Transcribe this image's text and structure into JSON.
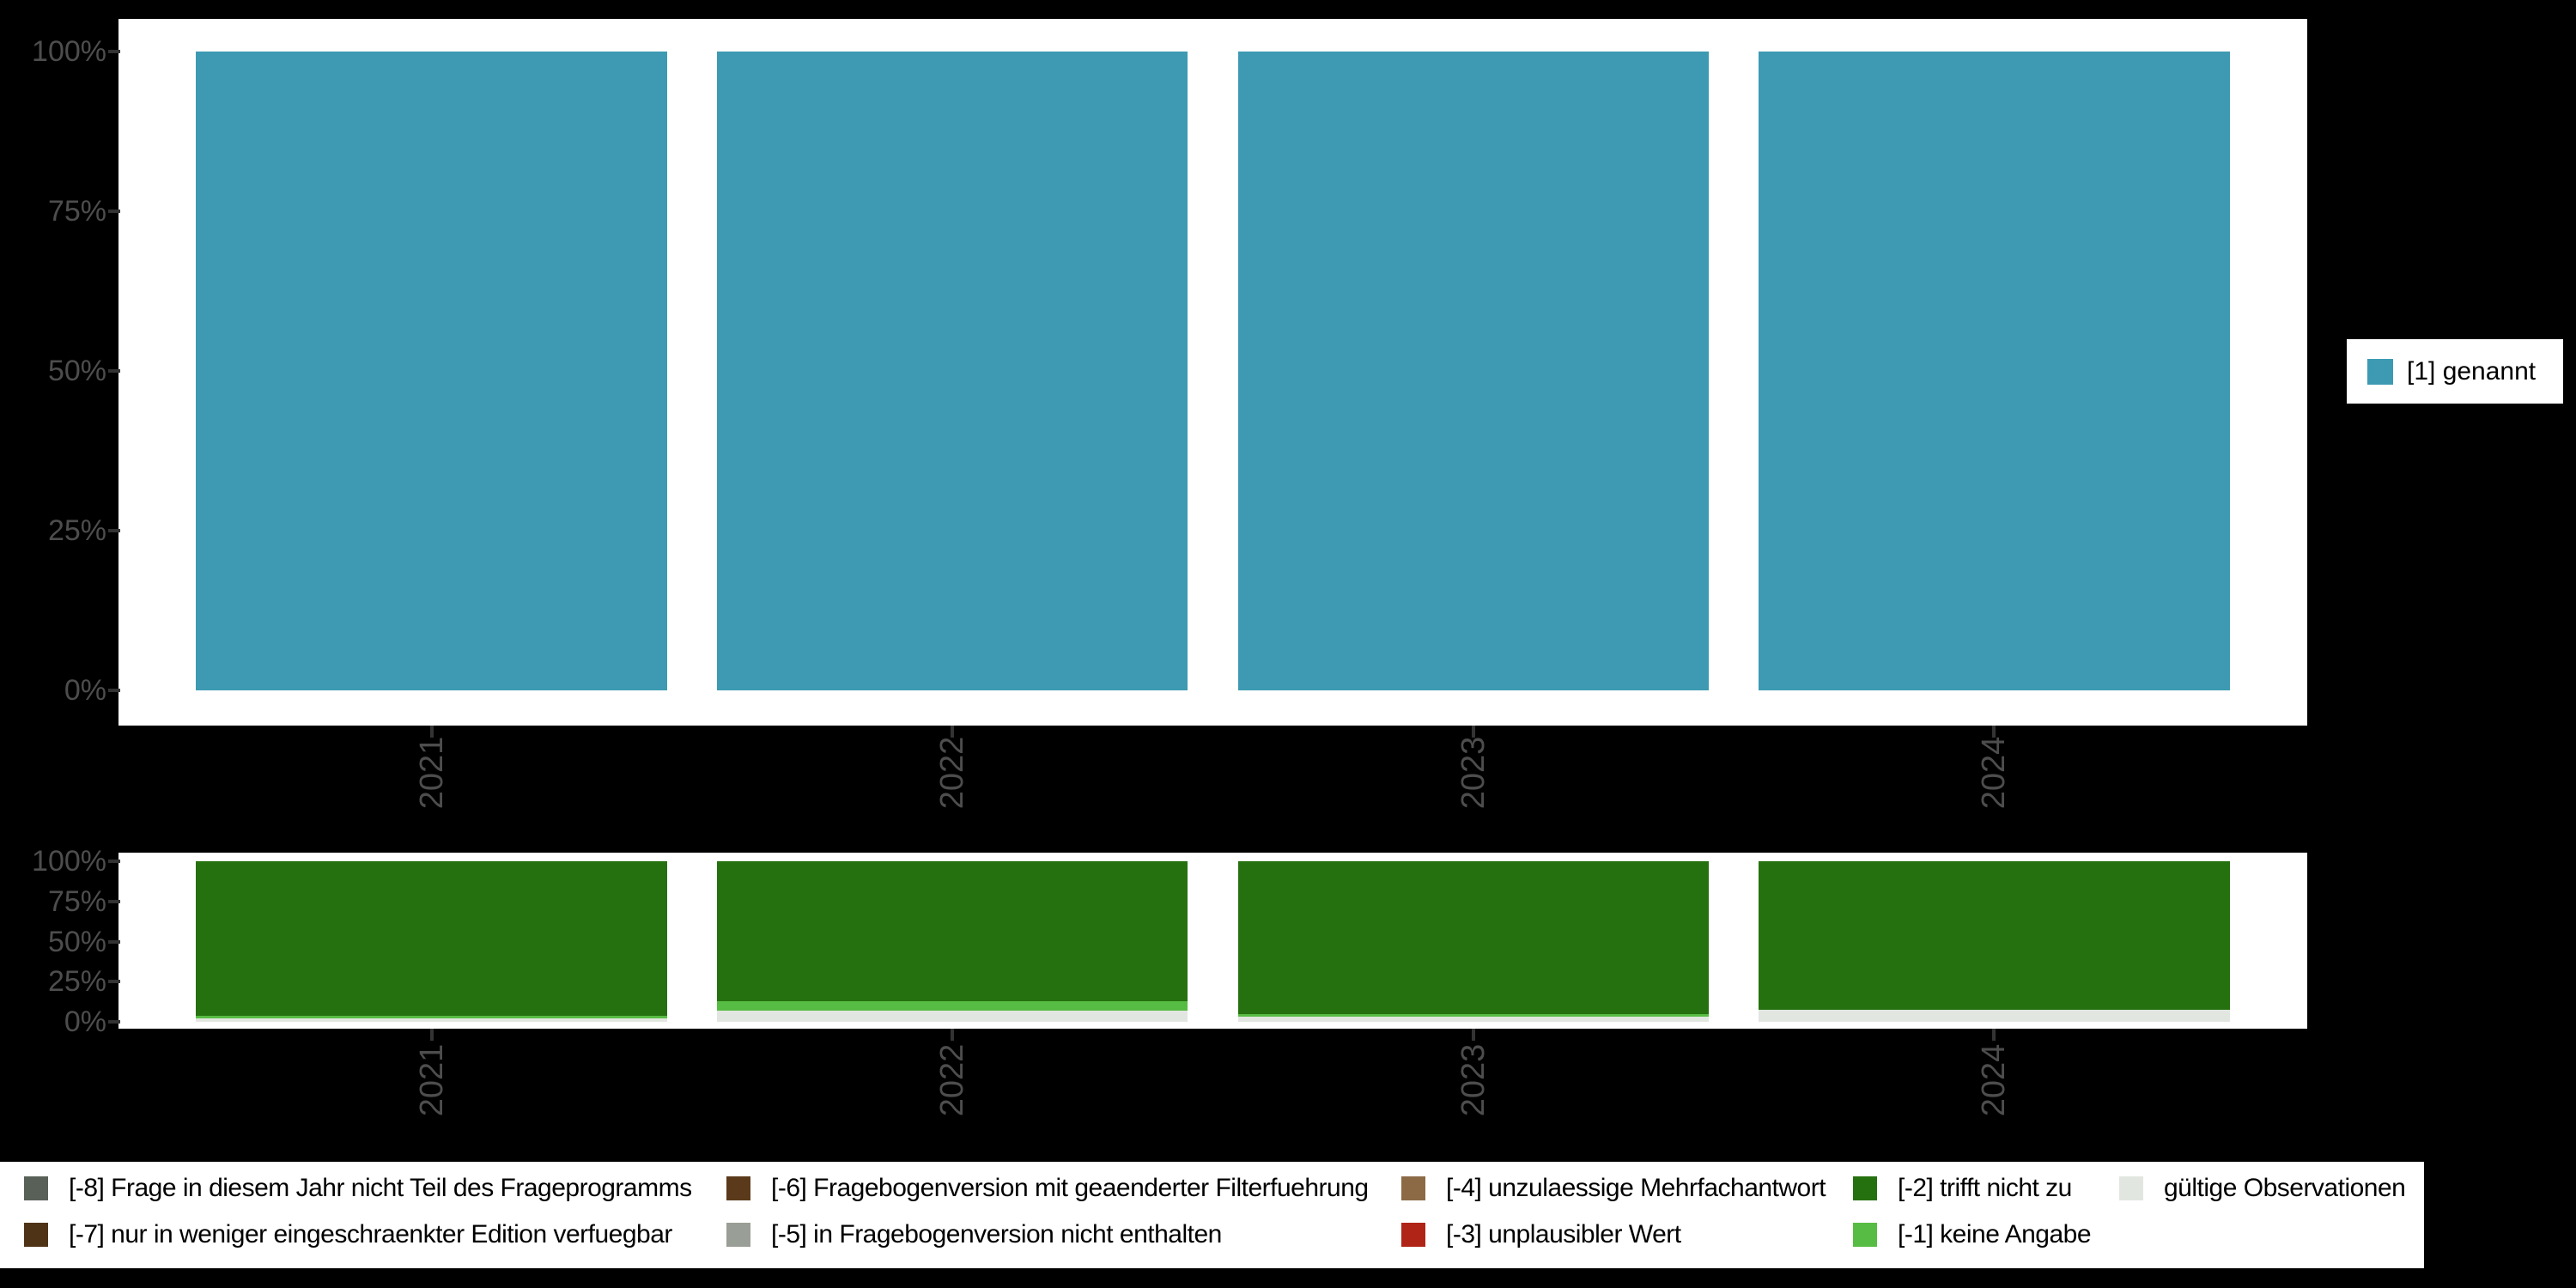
{
  "colors": {
    "page_background": "#000000",
    "panel_background": "#ffffff",
    "axis_text": "#4d4d4d",
    "tick_mark": "#333333",
    "legend_text": "#000000"
  },
  "chart_data": [
    {
      "id": "answers-by-year",
      "type": "bar",
      "stacked": true,
      "categories": [
        "2021",
        "2022",
        "2023",
        "2024"
      ],
      "series": [
        {
          "name": "[1] genannt",
          "color": "#3D9AB2",
          "values": [
            100,
            100,
            100,
            100
          ]
        }
      ],
      "ytick_labels": [
        "0%",
        "25%",
        "50%",
        "75%",
        "100%"
      ],
      "ylim": [
        0,
        100
      ],
      "grid": false,
      "legend_position": "right"
    },
    {
      "id": "missings-by-year",
      "type": "bar",
      "stacked": true,
      "categories": [
        "2021",
        "2022",
        "2023",
        "2024"
      ],
      "series": [
        {
          "name": "gültige Observationen",
          "color": "#E2E6E0",
          "values": [
            2.1,
            6.9,
            3.2,
            7.4
          ]
        },
        {
          "name": "[-1] keine Angabe",
          "color": "#57BC43",
          "values": [
            1.6,
            5.9,
            1.6,
            0
          ]
        },
        {
          "name": "[-2] trifft nicht zu",
          "color": "#26710F",
          "values": [
            96.3,
            87.2,
            95.2,
            92.6
          ]
        }
      ],
      "ytick_labels": [
        "0%",
        "25%",
        "50%",
        "75%",
        "100%"
      ],
      "ylim": [
        0,
        100
      ],
      "grid": false,
      "legend_position": "bottom"
    }
  ],
  "missing_legend": {
    "columns": [
      {
        "items": [
          {
            "label": "[-8] Frage in diesem Jahr nicht Teil des Frageprogramms",
            "color": "#586058"
          },
          {
            "label": "[-7] nur in weniger eingeschraenkter Edition verfuegbar",
            "color": "#4F3317"
          }
        ]
      },
      {
        "items": [
          {
            "label": "[-6] Fragebogenversion mit geaenderter Filterfuehrung",
            "color": "#5A3A1A"
          },
          {
            "label": "[-5] in Fragebogenversion nicht enthalten",
            "color": "#999E96"
          }
        ]
      },
      {
        "items": [
          {
            "label": "[-4] unzulaessige Mehrfachantwort",
            "color": "#8C6A46"
          },
          {
            "label": "[-3] unplausibler Wert",
            "color": "#B02418"
          }
        ]
      },
      {
        "items": [
          {
            "label": "[-2] trifft nicht zu",
            "color": "#26710F"
          },
          {
            "label": "[-1] keine Angabe",
            "color": "#57BC43"
          }
        ]
      },
      {
        "items": [
          {
            "label": "gültige Observationen",
            "color": "#E2E6E0"
          }
        ]
      }
    ]
  }
}
